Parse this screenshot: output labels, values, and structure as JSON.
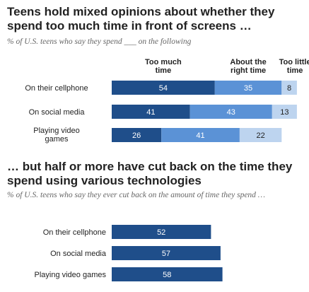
{
  "titles": {
    "main": "Teens hold mixed opinions about whether they spend too much time in front of screens …",
    "main_subtitle": "% of U.S. teens who say they spend ___ on the following",
    "second": "… but half or more have cut back on the time they spend using various technologies",
    "second_subtitle": "% of U.S. teens who say they ever cut back on the amount of time they spend …"
  },
  "colors": {
    "too_much": "#1f4e8a",
    "about_right": "#5b92d6",
    "too_little": "#bdd4ef",
    "cut_back": "#1f4e8a"
  },
  "chart_data": [
    {
      "type": "bar",
      "stacked": true,
      "orientation": "horizontal",
      "categories": [
        "On their cellphone",
        "On social media",
        "Playing video games"
      ],
      "series": [
        {
          "name": "Too much time",
          "values": [
            54,
            41,
            26
          ]
        },
        {
          "name": "About the right time",
          "values": [
            35,
            43,
            41
          ]
        },
        {
          "name": "Too little time",
          "values": [
            8,
            13,
            22
          ]
        }
      ],
      "xlim": [
        0,
        100
      ]
    },
    {
      "type": "bar",
      "orientation": "horizontal",
      "categories": [
        "On their cellphone",
        "On social media",
        "Playing video games"
      ],
      "values": [
        52,
        57,
        58
      ],
      "xlim": [
        0,
        100
      ]
    }
  ]
}
